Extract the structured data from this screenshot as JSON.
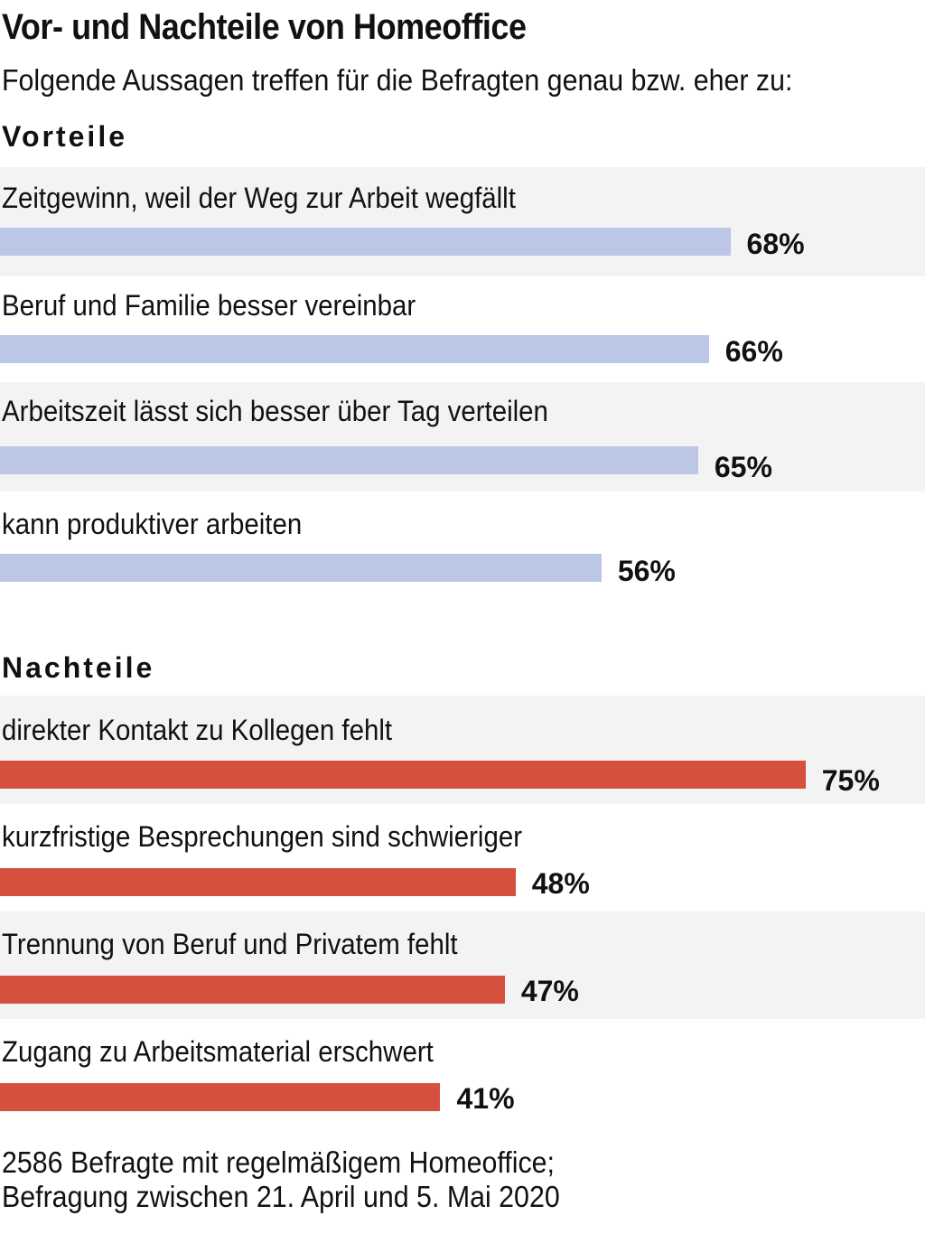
{
  "chart_data": {
    "type": "bar",
    "title": "Vor- und Nachteile von Homeoffice",
    "subtitle": "Folgende Aussagen treffen für die Befragten genau bzw. eher zu:",
    "xlim": [
      0,
      100
    ],
    "groups": [
      {
        "name": "Vorteile",
        "color": "#bcc6e6",
        "items": [
          {
            "label": "Zeitgewinn, weil der Weg zur Arbeit wegfällt",
            "value": 68,
            "value_label": "68%"
          },
          {
            "label": "Beruf und Familie besser vereinbar",
            "value": 66,
            "value_label": "66%"
          },
          {
            "label": "Arbeitszeit lässt sich besser über Tag verteilen",
            "value": 65,
            "value_label": "65%"
          },
          {
            "label": "kann produktiver arbeiten",
            "value": 56,
            "value_label": "56%"
          }
        ]
      },
      {
        "name": "Nachteile",
        "color": "#d6503e",
        "items": [
          {
            "label": "direkter Kontakt zu Kollegen fehlt",
            "value": 75,
            "value_label": "75%"
          },
          {
            "label": "kurzfristige Besprechungen sind schwieriger",
            "value": 48,
            "value_label": "48%"
          },
          {
            "label": "Trennung von Beruf und Privatem fehlt",
            "value": 47,
            "value_label": "47%"
          },
          {
            "label": "Zugang zu Arbeitsmaterial erschwert",
            "value": 41,
            "value_label": "41%"
          }
        ]
      }
    ],
    "footnote_lines": [
      "2586 Befragte mit regelmäßigem Homeoffice;",
      "Befragung zwischen 21. April und 5. Mai 2020"
    ]
  }
}
